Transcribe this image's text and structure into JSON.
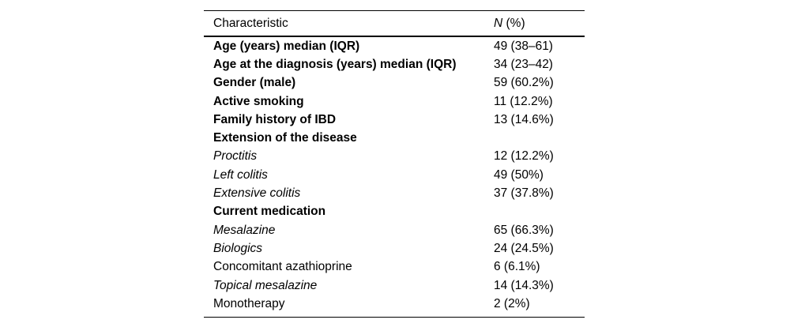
{
  "table": {
    "title_semantic": "patient-characteristics-table",
    "header": {
      "characteristic": "Characteristic",
      "n_italic": "N",
      "n_rest": " (%)"
    },
    "rows": [
      {
        "label": "Age (years) median (IQR)",
        "value": "49 (38–61)",
        "style": "bold",
        "indent": 0
      },
      {
        "label": "Age at the diagnosis (years) median (IQR)",
        "value": "34 (23–42)",
        "style": "bold",
        "indent": 0
      },
      {
        "label": "Gender (male)",
        "value": "59 (60.2%)",
        "style": "bold",
        "indent": 0
      },
      {
        "label": "Active smoking",
        "value": "11 (12.2%)",
        "style": "bold",
        "indent": 0
      },
      {
        "label": "Family history of IBD",
        "value": "13 (14.6%)",
        "style": "bold",
        "indent": 0
      },
      {
        "label": "Extension of the disease",
        "value": "",
        "style": "bold",
        "indent": 0
      },
      {
        "label": "Proctitis",
        "value": "12 (12.2%)",
        "style": "italic",
        "indent": 1
      },
      {
        "label": "Left colitis",
        "value": "49 (50%)",
        "style": "italic",
        "indent": 1
      },
      {
        "label": "Extensive colitis",
        "value": "37 (37.8%)",
        "style": "italic",
        "indent": 1
      },
      {
        "label": "Current medication",
        "value": "",
        "style": "bold",
        "indent": 0
      },
      {
        "label": "Mesalazine",
        "value": "65 (66.3%)",
        "style": "italic",
        "indent": 1
      },
      {
        "label": "Biologics",
        "value": "24 (24.5%)",
        "style": "italic",
        "indent": 1
      },
      {
        "label": "Concomitant azathioprine",
        "value": "6 (6.1%)",
        "style": "regular",
        "indent": 2
      },
      {
        "label": "Topical mesalazine",
        "value": "14 (14.3%)",
        "style": "italic",
        "indent": 1
      },
      {
        "label": "Monotherapy",
        "value": "2 (2%)",
        "style": "regular",
        "indent": 2
      }
    ]
  }
}
